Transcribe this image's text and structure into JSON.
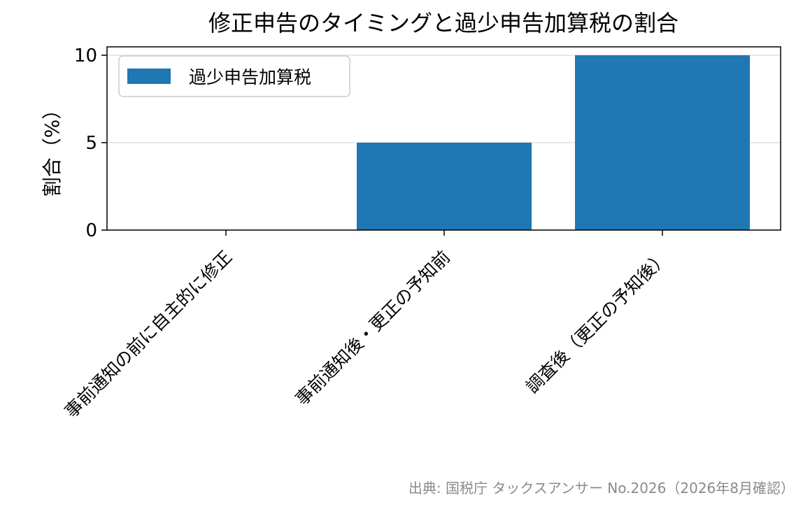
{
  "source": "出典: 国税庁 タックスアンサー No.2026（2026年8月確認）",
  "colors": {
    "bar": "#1f77b4",
    "grid": "#dcdcdc"
  },
  "chart_data": {
    "type": "bar",
    "title": "修正申告のタイミングと過少申告加算税の割合",
    "xlabel": "",
    "ylabel": "割合（%）",
    "categories": [
      "事前通知の前に自主的に修正",
      "事前通知後・更正の予知前",
      "調査後（更正の予知後）"
    ],
    "series": [
      {
        "name": "過少申告加算税",
        "values": [
          0,
          5,
          10
        ]
      }
    ],
    "ylim": [
      0,
      10
    ],
    "yticks": [
      0,
      5,
      10
    ],
    "grid": "horizontal",
    "legend": "top-left"
  }
}
